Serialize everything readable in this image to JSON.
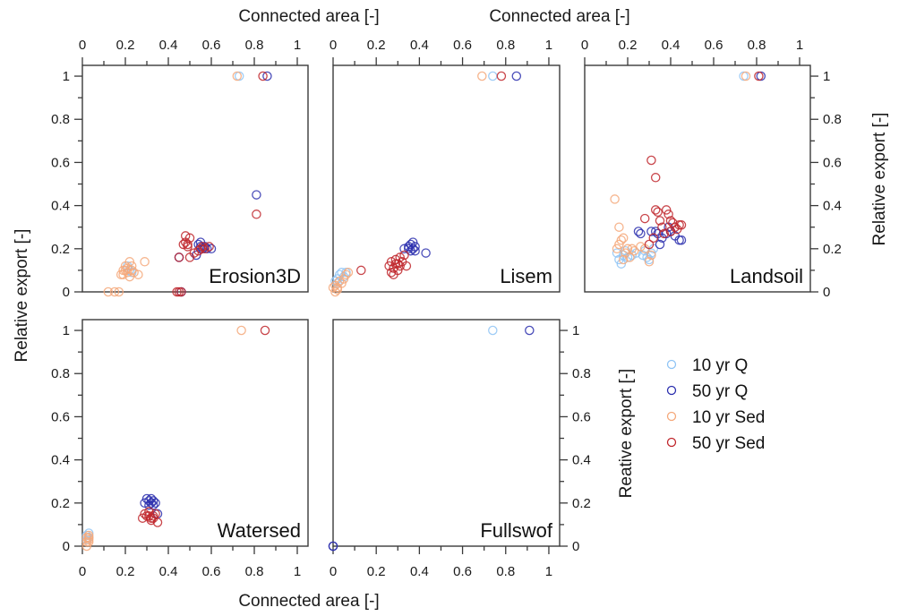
{
  "chart_data": {
    "type": "scatter",
    "xlabel": "Connected area [-]",
    "ylabel": "Relative export [-]",
    "ylabel_panel5": "Reative export [-]",
    "xlim": [
      0,
      1.05
    ],
    "ylim": [
      0,
      1.05
    ],
    "x_ticks": [
      "0",
      "0.2",
      "0.4",
      "0.6",
      "0.8",
      "1"
    ],
    "y_ticks": [
      "0",
      "0.2",
      "0.4",
      "0.6",
      "0.8",
      "1"
    ],
    "legend": {
      "placement": "right-middle",
      "entries": [
        {
          "key": "q10",
          "label": "10 yr Q",
          "color": "#8fc4f5"
        },
        {
          "key": "q50",
          "label": "50 yr Q",
          "color": "#2b2fae"
        },
        {
          "key": "s10",
          "label": "10 yr Sed",
          "color": "#f5a87a"
        },
        {
          "key": "s50",
          "label": "50 yr Sed",
          "color": "#c0262c"
        }
      ]
    },
    "panels": [
      {
        "name": "Erosion3D",
        "series": {
          "q10": [
            [
              0.73,
              1.0
            ],
            [
              0.21,
              0.12
            ],
            [
              0.22,
              0.1
            ],
            [
              0.23,
              0.09
            ]
          ],
          "s10": [
            [
              0.72,
              1.0
            ],
            [
              0.12,
              0.0
            ],
            [
              0.15,
              0.0
            ],
            [
              0.17,
              0.0
            ],
            [
              0.18,
              0.08
            ],
            [
              0.19,
              0.08
            ],
            [
              0.2,
              0.1
            ],
            [
              0.21,
              0.11
            ],
            [
              0.2,
              0.12
            ],
            [
              0.22,
              0.14
            ],
            [
              0.22,
              0.07
            ],
            [
              0.23,
              0.12
            ],
            [
              0.24,
              0.09
            ],
            [
              0.26,
              0.08
            ],
            [
              0.29,
              0.14
            ],
            [
              0.21,
              0.09
            ],
            [
              0.19,
              0.1
            ],
            [
              0.23,
              0.1
            ]
          ],
          "q50": [
            [
              0.86,
              1.0
            ],
            [
              0.81,
              0.45
            ],
            [
              0.45,
              0.16
            ],
            [
              0.53,
              0.17
            ],
            [
              0.54,
              0.22
            ],
            [
              0.55,
              0.21
            ],
            [
              0.56,
              0.2
            ],
            [
              0.57,
              0.21
            ],
            [
              0.58,
              0.2
            ],
            [
              0.6,
              0.2
            ],
            [
              0.55,
              0.23
            ],
            [
              0.46,
              0.0
            ]
          ],
          "s50": [
            [
              0.84,
              1.0
            ],
            [
              0.81,
              0.36
            ],
            [
              0.45,
              0.16
            ],
            [
              0.44,
              0.0
            ],
            [
              0.45,
              0.0
            ],
            [
              0.46,
              0.0
            ],
            [
              0.47,
              0.22
            ],
            [
              0.48,
              0.23
            ],
            [
              0.48,
              0.26
            ],
            [
              0.49,
              0.21
            ],
            [
              0.5,
              0.25
            ],
            [
              0.5,
              0.16
            ],
            [
              0.52,
              0.18
            ],
            [
              0.54,
              0.19
            ],
            [
              0.55,
              0.2
            ],
            [
              0.56,
              0.21
            ],
            [
              0.57,
              0.2
            ],
            [
              0.59,
              0.21
            ],
            [
              0.49,
              0.22
            ]
          ]
        }
      },
      {
        "name": "Lisem",
        "series": {
          "q10": [
            [
              0.74,
              1.0
            ],
            [
              0.01,
              0.05
            ],
            [
              0.02,
              0.06
            ],
            [
              0.03,
              0.08
            ],
            [
              0.04,
              0.09
            ],
            [
              0.06,
              0.09
            ],
            [
              0.05,
              0.07
            ],
            [
              0.02,
              0.04
            ]
          ],
          "s10": [
            [
              0.69,
              1.0
            ],
            [
              0.0,
              0.02
            ],
            [
              0.01,
              0.0
            ],
            [
              0.01,
              0.03
            ],
            [
              0.02,
              0.02
            ],
            [
              0.03,
              0.05
            ],
            [
              0.04,
              0.04
            ],
            [
              0.05,
              0.06
            ],
            [
              0.06,
              0.08
            ],
            [
              0.07,
              0.09
            ],
            [
              0.02,
              0.01
            ]
          ],
          "q50": [
            [
              0.85,
              1.0
            ],
            [
              0.43,
              0.18
            ],
            [
              0.33,
              0.2
            ],
            [
              0.35,
              0.21
            ],
            [
              0.36,
              0.22
            ],
            [
              0.37,
              0.2
            ],
            [
              0.38,
              0.21
            ],
            [
              0.36,
              0.19
            ],
            [
              0.37,
              0.23
            ],
            [
              0.38,
              0.19
            ],
            [
              0.35,
              0.2
            ]
          ],
          "s50": [
            [
              0.78,
              1.0
            ],
            [
              0.13,
              0.1
            ],
            [
              0.26,
              0.12
            ],
            [
              0.27,
              0.14
            ],
            [
              0.28,
              0.11
            ],
            [
              0.29,
              0.13
            ],
            [
              0.29,
              0.15
            ],
            [
              0.3,
              0.13
            ],
            [
              0.31,
              0.16
            ],
            [
              0.32,
              0.14
            ],
            [
              0.33,
              0.17
            ],
            [
              0.28,
              0.08
            ],
            [
              0.27,
              0.09
            ],
            [
              0.34,
              0.12
            ],
            [
              0.3,
              0.1
            ],
            [
              0.31,
              0.12
            ]
          ]
        }
      },
      {
        "name": "Landsoil",
        "series": {
          "q10": [
            [
              0.74,
              1.0
            ],
            [
              0.15,
              0.18
            ],
            [
              0.16,
              0.15
            ],
            [
              0.17,
              0.13
            ],
            [
              0.18,
              0.17
            ],
            [
              0.19,
              0.19
            ],
            [
              0.2,
              0.16
            ],
            [
              0.22,
              0.17
            ],
            [
              0.24,
              0.18
            ],
            [
              0.27,
              0.17
            ],
            [
              0.28,
              0.19
            ],
            [
              0.29,
              0.16
            ],
            [
              0.3,
              0.15
            ],
            [
              0.31,
              0.18
            ],
            [
              0.32,
              0.2
            ]
          ],
          "s10": [
            [
              0.75,
              1.0
            ],
            [
              0.14,
              0.43
            ],
            [
              0.16,
              0.3
            ],
            [
              0.16,
              0.22
            ],
            [
              0.17,
              0.24
            ],
            [
              0.18,
              0.25
            ],
            [
              0.15,
              0.2
            ],
            [
              0.19,
              0.18
            ],
            [
              0.2,
              0.2
            ],
            [
              0.22,
              0.2
            ],
            [
              0.23,
              0.19
            ],
            [
              0.26,
              0.21
            ],
            [
              0.28,
              0.2
            ],
            [
              0.3,
              0.14
            ],
            [
              0.31,
              0.17
            ],
            [
              0.18,
              0.15
            ],
            [
              0.21,
              0.16
            ]
          ],
          "q50": [
            [
              0.82,
              1.0
            ],
            [
              0.25,
              0.28
            ],
            [
              0.26,
              0.27
            ],
            [
              0.31,
              0.28
            ],
            [
              0.33,
              0.28
            ],
            [
              0.34,
              0.27
            ],
            [
              0.36,
              0.25
            ],
            [
              0.38,
              0.27
            ],
            [
              0.39,
              0.3
            ],
            [
              0.4,
              0.28
            ],
            [
              0.42,
              0.26
            ],
            [
              0.44,
              0.24
            ],
            [
              0.45,
              0.24
            ],
            [
              0.35,
              0.22
            ]
          ],
          "s50": [
            [
              0.81,
              1.0
            ],
            [
              0.31,
              0.61
            ],
            [
              0.33,
              0.53
            ],
            [
              0.28,
              0.34
            ],
            [
              0.33,
              0.38
            ],
            [
              0.34,
              0.37
            ],
            [
              0.35,
              0.33
            ],
            [
              0.36,
              0.3
            ],
            [
              0.38,
              0.38
            ],
            [
              0.39,
              0.36
            ],
            [
              0.4,
              0.33
            ],
            [
              0.41,
              0.32
            ],
            [
              0.42,
              0.3
            ],
            [
              0.43,
              0.29
            ],
            [
              0.44,
              0.31
            ],
            [
              0.45,
              0.31
            ],
            [
              0.37,
              0.27
            ],
            [
              0.3,
              0.22
            ],
            [
              0.32,
              0.25
            ],
            [
              0.4,
              0.28
            ]
          ]
        }
      },
      {
        "name": "Watersed",
        "series": {
          "q10": [
            [
              0.02,
              0.05
            ],
            [
              0.03,
              0.06
            ],
            [
              0.03,
              0.04
            ],
            [
              0.02,
              0.03
            ]
          ],
          "s10": [
            [
              0.74,
              1.0
            ],
            [
              0.02,
              0.0
            ],
            [
              0.02,
              0.02
            ],
            [
              0.03,
              0.03
            ],
            [
              0.03,
              0.04
            ],
            [
              0.03,
              0.05
            ],
            [
              0.03,
              0.02
            ],
            [
              0.02,
              0.04
            ]
          ],
          "q50": [
            [
              0.29,
              0.2
            ],
            [
              0.3,
              0.22
            ],
            [
              0.31,
              0.21
            ],
            [
              0.32,
              0.2
            ],
            [
              0.32,
              0.22
            ],
            [
              0.33,
              0.21
            ],
            [
              0.34,
              0.2
            ],
            [
              0.33,
              0.19
            ],
            [
              0.35,
              0.15
            ],
            [
              0.31,
              0.19
            ]
          ],
          "s50": [
            [
              0.85,
              1.0
            ],
            [
              0.28,
              0.13
            ],
            [
              0.29,
              0.15
            ],
            [
              0.3,
              0.14
            ],
            [
              0.31,
              0.16
            ],
            [
              0.32,
              0.13
            ],
            [
              0.33,
              0.14
            ],
            [
              0.34,
              0.15
            ],
            [
              0.32,
              0.12
            ],
            [
              0.35,
              0.11
            ],
            [
              0.33,
              0.13
            ],
            [
              0.31,
              0.14
            ]
          ]
        }
      },
      {
        "name": "Fullswof",
        "series": {
          "q10": [
            [
              0.74,
              1.0
            ]
          ],
          "s10": [],
          "q50": [
            [
              0.91,
              1.0
            ],
            [
              0.0,
              0.0
            ],
            [
              0.0,
              0.0
            ]
          ],
          "s50": []
        }
      }
    ]
  }
}
